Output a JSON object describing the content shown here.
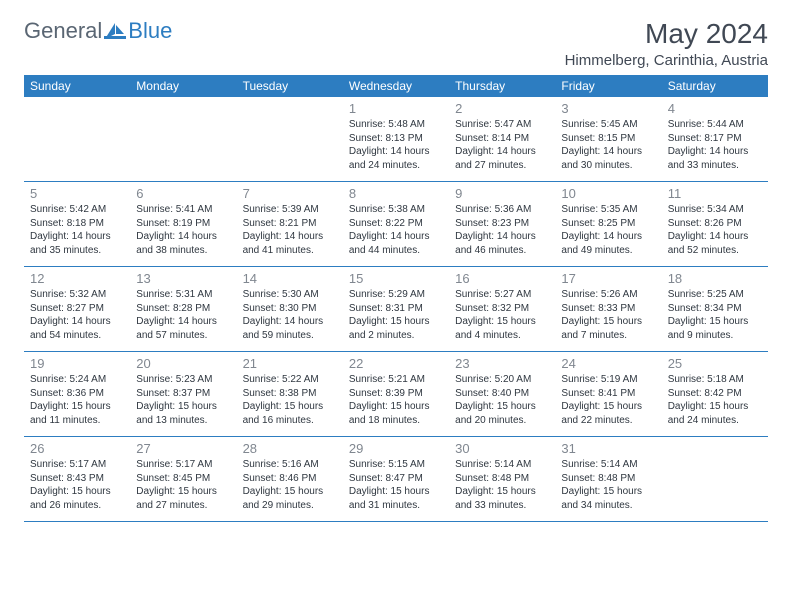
{
  "brand": {
    "general": "General",
    "blue": "Blue"
  },
  "title": "May 2024",
  "location": "Himmelberg, Carinthia, Austria",
  "colors": {
    "header_bg": "#2d7dc1",
    "header_text": "#ffffff",
    "daynum": "#808790",
    "body_text": "#2f3740",
    "brand_gray": "#5a6673",
    "brand_blue": "#2d7dc1",
    "divider": "#2d7dc1",
    "background": "#ffffff"
  },
  "weekdays": [
    "Sunday",
    "Monday",
    "Tuesday",
    "Wednesday",
    "Thursday",
    "Friday",
    "Saturday"
  ],
  "weeks": [
    [
      {
        "n": "",
        "lines": []
      },
      {
        "n": "",
        "lines": []
      },
      {
        "n": "",
        "lines": []
      },
      {
        "n": "1",
        "lines": [
          "Sunrise: 5:48 AM",
          "Sunset: 8:13 PM",
          "Daylight: 14 hours",
          "and 24 minutes."
        ]
      },
      {
        "n": "2",
        "lines": [
          "Sunrise: 5:47 AM",
          "Sunset: 8:14 PM",
          "Daylight: 14 hours",
          "and 27 minutes."
        ]
      },
      {
        "n": "3",
        "lines": [
          "Sunrise: 5:45 AM",
          "Sunset: 8:15 PM",
          "Daylight: 14 hours",
          "and 30 minutes."
        ]
      },
      {
        "n": "4",
        "lines": [
          "Sunrise: 5:44 AM",
          "Sunset: 8:17 PM",
          "Daylight: 14 hours",
          "and 33 minutes."
        ]
      }
    ],
    [
      {
        "n": "5",
        "lines": [
          "Sunrise: 5:42 AM",
          "Sunset: 8:18 PM",
          "Daylight: 14 hours",
          "and 35 minutes."
        ]
      },
      {
        "n": "6",
        "lines": [
          "Sunrise: 5:41 AM",
          "Sunset: 8:19 PM",
          "Daylight: 14 hours",
          "and 38 minutes."
        ]
      },
      {
        "n": "7",
        "lines": [
          "Sunrise: 5:39 AM",
          "Sunset: 8:21 PM",
          "Daylight: 14 hours",
          "and 41 minutes."
        ]
      },
      {
        "n": "8",
        "lines": [
          "Sunrise: 5:38 AM",
          "Sunset: 8:22 PM",
          "Daylight: 14 hours",
          "and 44 minutes."
        ]
      },
      {
        "n": "9",
        "lines": [
          "Sunrise: 5:36 AM",
          "Sunset: 8:23 PM",
          "Daylight: 14 hours",
          "and 46 minutes."
        ]
      },
      {
        "n": "10",
        "lines": [
          "Sunrise: 5:35 AM",
          "Sunset: 8:25 PM",
          "Daylight: 14 hours",
          "and 49 minutes."
        ]
      },
      {
        "n": "11",
        "lines": [
          "Sunrise: 5:34 AM",
          "Sunset: 8:26 PM",
          "Daylight: 14 hours",
          "and 52 minutes."
        ]
      }
    ],
    [
      {
        "n": "12",
        "lines": [
          "Sunrise: 5:32 AM",
          "Sunset: 8:27 PM",
          "Daylight: 14 hours",
          "and 54 minutes."
        ]
      },
      {
        "n": "13",
        "lines": [
          "Sunrise: 5:31 AM",
          "Sunset: 8:28 PM",
          "Daylight: 14 hours",
          "and 57 minutes."
        ]
      },
      {
        "n": "14",
        "lines": [
          "Sunrise: 5:30 AM",
          "Sunset: 8:30 PM",
          "Daylight: 14 hours",
          "and 59 minutes."
        ]
      },
      {
        "n": "15",
        "lines": [
          "Sunrise: 5:29 AM",
          "Sunset: 8:31 PM",
          "Daylight: 15 hours",
          "and 2 minutes."
        ]
      },
      {
        "n": "16",
        "lines": [
          "Sunrise: 5:27 AM",
          "Sunset: 8:32 PM",
          "Daylight: 15 hours",
          "and 4 minutes."
        ]
      },
      {
        "n": "17",
        "lines": [
          "Sunrise: 5:26 AM",
          "Sunset: 8:33 PM",
          "Daylight: 15 hours",
          "and 7 minutes."
        ]
      },
      {
        "n": "18",
        "lines": [
          "Sunrise: 5:25 AM",
          "Sunset: 8:34 PM",
          "Daylight: 15 hours",
          "and 9 minutes."
        ]
      }
    ],
    [
      {
        "n": "19",
        "lines": [
          "Sunrise: 5:24 AM",
          "Sunset: 8:36 PM",
          "Daylight: 15 hours",
          "and 11 minutes."
        ]
      },
      {
        "n": "20",
        "lines": [
          "Sunrise: 5:23 AM",
          "Sunset: 8:37 PM",
          "Daylight: 15 hours",
          "and 13 minutes."
        ]
      },
      {
        "n": "21",
        "lines": [
          "Sunrise: 5:22 AM",
          "Sunset: 8:38 PM",
          "Daylight: 15 hours",
          "and 16 minutes."
        ]
      },
      {
        "n": "22",
        "lines": [
          "Sunrise: 5:21 AM",
          "Sunset: 8:39 PM",
          "Daylight: 15 hours",
          "and 18 minutes."
        ]
      },
      {
        "n": "23",
        "lines": [
          "Sunrise: 5:20 AM",
          "Sunset: 8:40 PM",
          "Daylight: 15 hours",
          "and 20 minutes."
        ]
      },
      {
        "n": "24",
        "lines": [
          "Sunrise: 5:19 AM",
          "Sunset: 8:41 PM",
          "Daylight: 15 hours",
          "and 22 minutes."
        ]
      },
      {
        "n": "25",
        "lines": [
          "Sunrise: 5:18 AM",
          "Sunset: 8:42 PM",
          "Daylight: 15 hours",
          "and 24 minutes."
        ]
      }
    ],
    [
      {
        "n": "26",
        "lines": [
          "Sunrise: 5:17 AM",
          "Sunset: 8:43 PM",
          "Daylight: 15 hours",
          "and 26 minutes."
        ]
      },
      {
        "n": "27",
        "lines": [
          "Sunrise: 5:17 AM",
          "Sunset: 8:45 PM",
          "Daylight: 15 hours",
          "and 27 minutes."
        ]
      },
      {
        "n": "28",
        "lines": [
          "Sunrise: 5:16 AM",
          "Sunset: 8:46 PM",
          "Daylight: 15 hours",
          "and 29 minutes."
        ]
      },
      {
        "n": "29",
        "lines": [
          "Sunrise: 5:15 AM",
          "Sunset: 8:47 PM",
          "Daylight: 15 hours",
          "and 31 minutes."
        ]
      },
      {
        "n": "30",
        "lines": [
          "Sunrise: 5:14 AM",
          "Sunset: 8:48 PM",
          "Daylight: 15 hours",
          "and 33 minutes."
        ]
      },
      {
        "n": "31",
        "lines": [
          "Sunrise: 5:14 AM",
          "Sunset: 8:48 PM",
          "Daylight: 15 hours",
          "and 34 minutes."
        ]
      },
      {
        "n": "",
        "lines": []
      }
    ]
  ]
}
